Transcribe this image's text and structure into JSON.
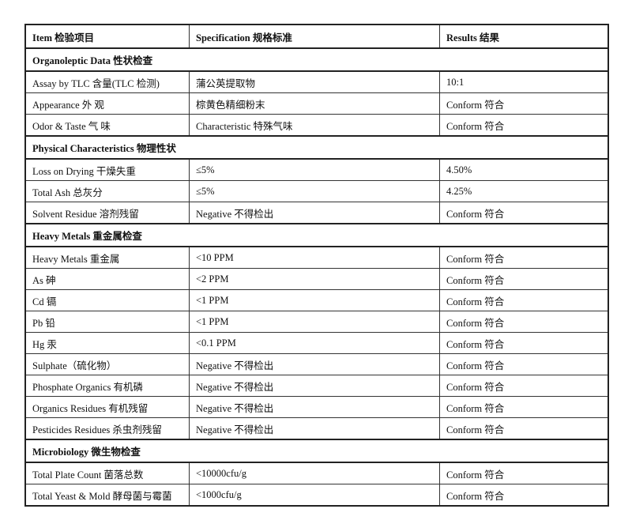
{
  "header": {
    "item": "Item 检验项目",
    "specification": "Specification 规格标准",
    "results": "Results 结果"
  },
  "sections": [
    {
      "title": "Organoleptic Data 性状检查",
      "rows": [
        {
          "item": "Assay by TLC 含量(TLC 检测)",
          "spec": "蒲公英提取物",
          "result": "10:1"
        },
        {
          "item": "Appearance 外 观",
          "spec": "棕黄色精细粉末",
          "result": "Conform 符合"
        },
        {
          "item": "Odor & Taste 气 味",
          "spec": "Characteristic 特殊气味",
          "result": "Conform 符合"
        }
      ]
    },
    {
      "title": "Physical Characteristics 物理性状",
      "rows": [
        {
          "item": "Loss on Drying    干燥失重",
          "spec": "≤5%",
          "result": "4.50%"
        },
        {
          "item": "Total Ash    总灰分",
          "spec": "≤5%",
          "result": "4.25%"
        },
        {
          "item": "Solvent Residue 溶剂残留",
          "spec": "Negative 不得检出",
          "result": "Conform 符合"
        }
      ]
    },
    {
      "title": "Heavy Metals 重金属检查",
      "rows": [
        {
          "item": "Heavy Metals 重金属",
          "spec": "<10 PPM",
          "result": "Conform 符合"
        },
        {
          "item": "As 砷",
          "spec": "<2 PPM",
          "result": "Conform 符合"
        },
        {
          "item": "Cd 镉",
          "spec": "<1 PPM",
          "result": "Conform 符合"
        },
        {
          "item": "Pb 铅",
          "spec": "<1 PPM",
          "result": "Conform 符合"
        },
        {
          "item": "Hg 汞",
          "spec": "<0.1 PPM",
          "result": "Conform 符合"
        },
        {
          "item": "Sulphate（硫化物）",
          "spec": "Negative 不得检出",
          "result": "Conform 符合"
        },
        {
          "item": "Phosphate Organics 有机磷",
          "spec": "Negative 不得检出",
          "result": "Conform 符合"
        },
        {
          "item": "Organics Residues 有机残留",
          "spec": "Negative 不得检出",
          "result": "Conform 符合"
        },
        {
          "item": "Pesticides Residues 杀虫剂残留",
          "spec": "Negative 不得检出",
          "result": "Conform 符合"
        }
      ]
    },
    {
      "title": "Microbiology 微生物检查",
      "rows": [
        {
          "item": "Total Plate Count    菌落总数",
          "spec": "<10000cfu/g",
          "result": "Conform 符合"
        },
        {
          "item": "Total Yeast & Mold 酵母菌与霉菌",
          "spec": "<1000cfu/g",
          "result": "Conform 符合"
        }
      ]
    }
  ]
}
